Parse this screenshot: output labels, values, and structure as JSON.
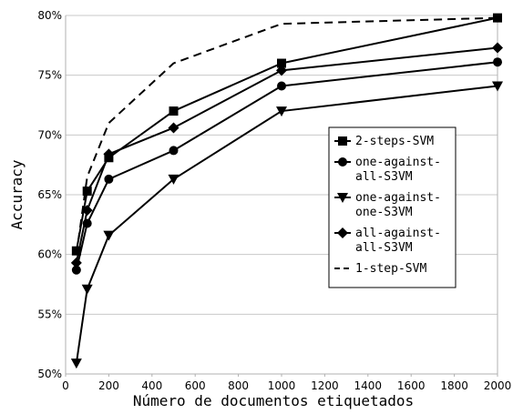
{
  "chart_data": {
    "type": "line",
    "title": "",
    "xlabel": "Número de documentos etiquetados",
    "ylabel": "Accuracy",
    "xlim": [
      0,
      2000
    ],
    "ylim": [
      50,
      80
    ],
    "x_ticks": [
      "0",
      "200",
      "400",
      "600",
      "800",
      "1000",
      "1200",
      "1400",
      "1600",
      "1800",
      "2000"
    ],
    "y_ticks": [
      "50%",
      "55%",
      "60%",
      "65%",
      "70%",
      "75%",
      "80%"
    ],
    "grid": "horizontal",
    "legend_position": "right",
    "series": [
      {
        "name": "2-steps-SVM",
        "legend_lines": [
          "2-steps-SVM"
        ],
        "marker": "square",
        "dash": "solid",
        "x": [
          50,
          100,
          200,
          500,
          1000,
          2000
        ],
        "y": [
          60.3,
          65.3,
          68.1,
          72.0,
          76.0,
          79.8
        ]
      },
      {
        "name": "one-against-all-S3VM",
        "legend_lines": [
          "one-against-",
          "all-S3VM"
        ],
        "marker": "circle",
        "dash": "solid",
        "x": [
          50,
          100,
          200,
          500,
          1000,
          2000
        ],
        "y": [
          58.7,
          62.6,
          66.3,
          68.7,
          74.1,
          76.1
        ]
      },
      {
        "name": "one-against-one-S3VM",
        "legend_lines": [
          "one-against-",
          "one-S3VM"
        ],
        "marker": "triangle-down",
        "dash": "solid",
        "x": [
          50,
          100,
          200,
          500,
          1000,
          2000
        ],
        "y": [
          50.9,
          57.1,
          61.6,
          66.3,
          72.0,
          74.1
        ]
      },
      {
        "name": "all-against-all-S3VM",
        "legend_lines": [
          "all-against-",
          "all-S3VM"
        ],
        "marker": "diamond",
        "dash": "solid",
        "x": [
          50,
          100,
          200,
          500,
          1000,
          2000
        ],
        "y": [
          59.3,
          63.7,
          68.4,
          70.6,
          75.4,
          77.3
        ]
      },
      {
        "name": "1-step-SVM",
        "legend_lines": [
          "1-step-SVM"
        ],
        "marker": "none",
        "dash": "dashed",
        "x": [
          50,
          100,
          200,
          500,
          1000,
          2000
        ],
        "y": [
          60.0,
          66.5,
          71.0,
          76.0,
          79.3,
          79.8
        ]
      }
    ]
  }
}
